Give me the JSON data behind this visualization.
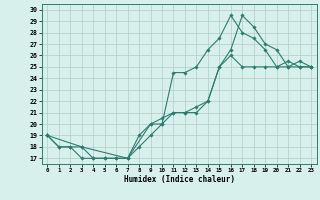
{
  "xlabel": "Humidex (Indice chaleur)",
  "bg_color": "#d8f0ec",
  "line_color": "#2d7d6e",
  "grid_color": "#b0ccc8",
  "spine_color": "#2d7d6e",
  "xlim": [
    -0.5,
    23.5
  ],
  "ylim": [
    16.5,
    30.5
  ],
  "xticks": [
    0,
    1,
    2,
    3,
    4,
    5,
    6,
    7,
    8,
    9,
    10,
    11,
    12,
    13,
    14,
    15,
    16,
    17,
    18,
    19,
    20,
    21,
    22,
    23
  ],
  "yticks": [
    17,
    18,
    19,
    20,
    21,
    22,
    23,
    24,
    25,
    26,
    27,
    28,
    29,
    30
  ],
  "line1_x": [
    0,
    1,
    2,
    3,
    4,
    5,
    6,
    7,
    8,
    9,
    10,
    11,
    12,
    13,
    14,
    15,
    16,
    17,
    18,
    19,
    20,
    21,
    22,
    23
  ],
  "line1_y": [
    19,
    18,
    18,
    17,
    17,
    17,
    17,
    17,
    18,
    19,
    20,
    21,
    21,
    21,
    22,
    25,
    26,
    25,
    25,
    25,
    25,
    25,
    25,
    25
  ],
  "line2_x": [
    0,
    1,
    2,
    3,
    4,
    5,
    6,
    7,
    8,
    9,
    10,
    11,
    12,
    13,
    14,
    15,
    16,
    17,
    18,
    19,
    20,
    21,
    22,
    23
  ],
  "line2_y": [
    19,
    18,
    18,
    18,
    17,
    17,
    17,
    17,
    19,
    20,
    20,
    24.5,
    24.5,
    25,
    26.5,
    27.5,
    29.5,
    28,
    27.5,
    26.5,
    25,
    25.5,
    25,
    25
  ],
  "line3_x": [
    0,
    3,
    7,
    9,
    10,
    11,
    12,
    13,
    14,
    15,
    16,
    17,
    18,
    19,
    20,
    21,
    22,
    23
  ],
  "line3_y": [
    19,
    18,
    17,
    20,
    20.5,
    21,
    21,
    21.5,
    22,
    25,
    26.5,
    29.5,
    28.5,
    27,
    26.5,
    25,
    25.5,
    25
  ]
}
